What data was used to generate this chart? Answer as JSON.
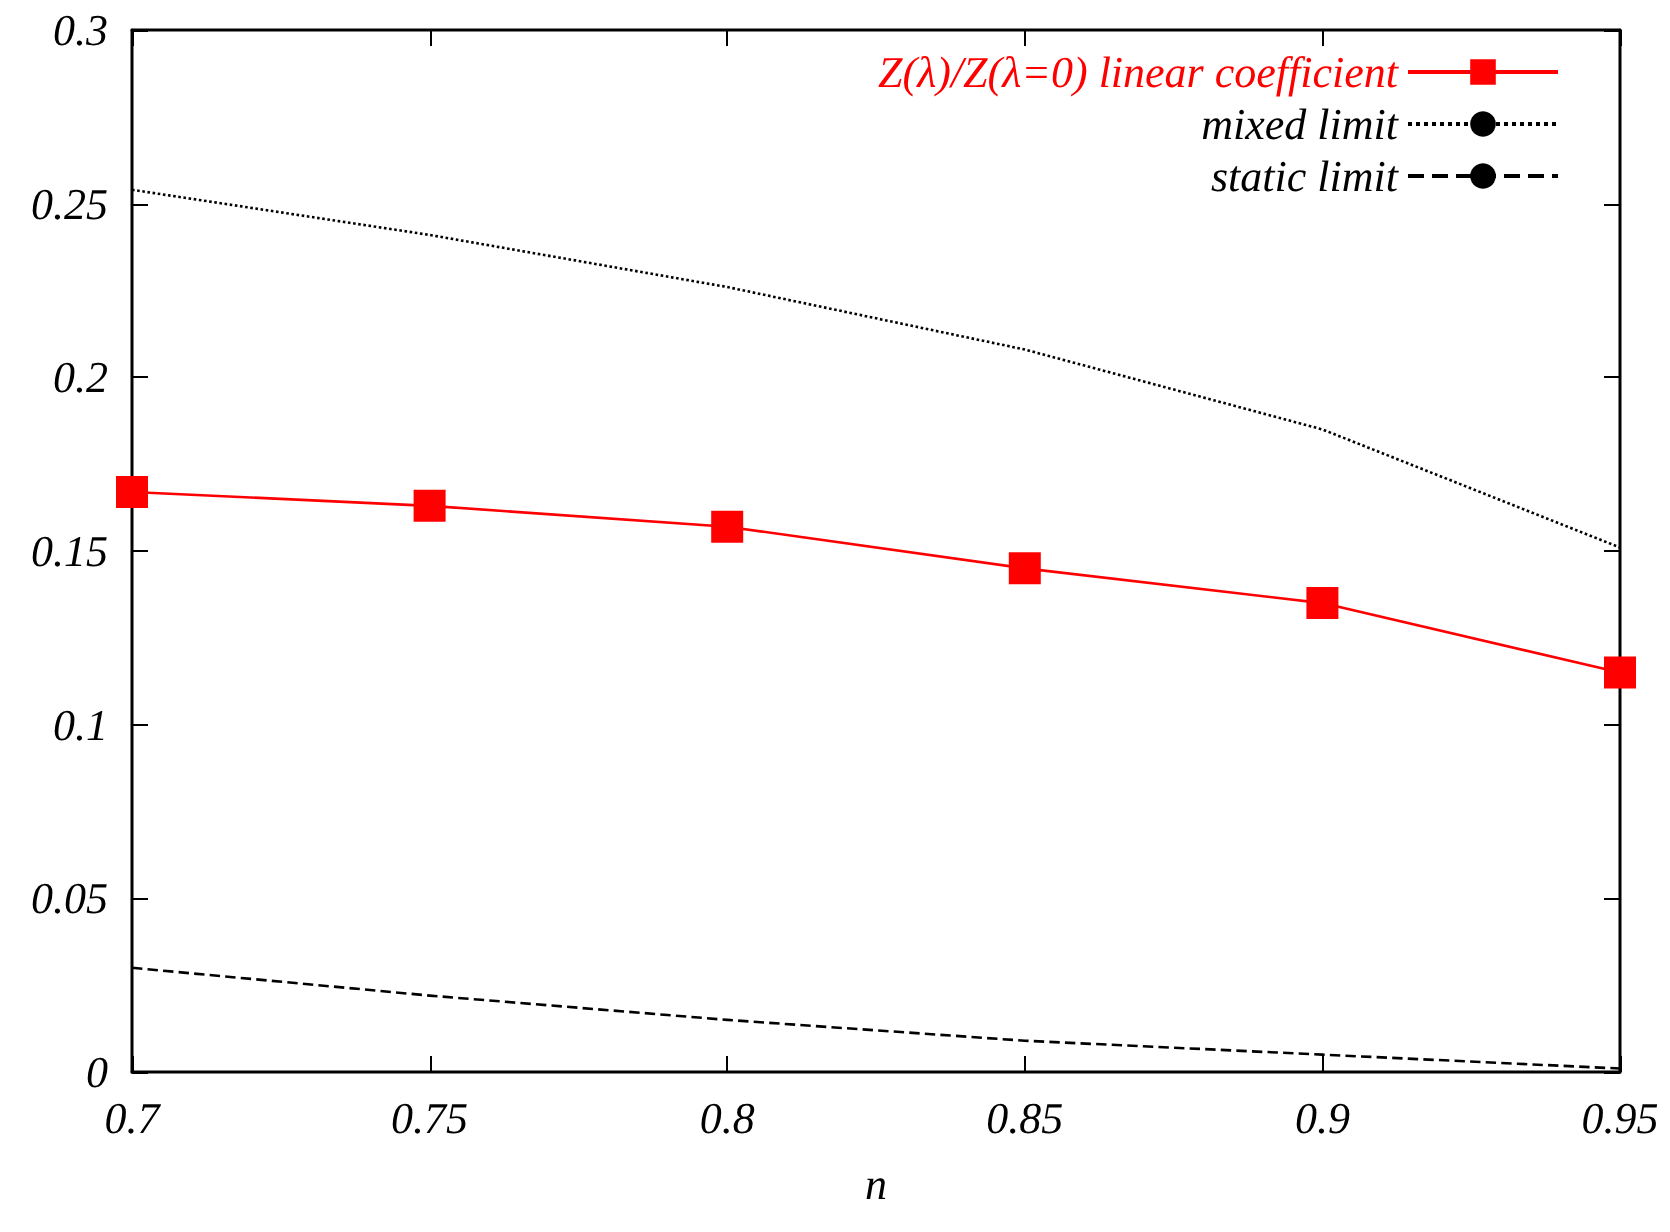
{
  "chart_data": {
    "type": "line",
    "xlabel": "n",
    "x": [
      0.7,
      0.75,
      0.8,
      0.85,
      0.9,
      0.95
    ],
    "series": [
      {
        "name": "Z(λ)/Z(λ=0) linear coefficient",
        "color": "#ff0000",
        "marker": "square",
        "line_style": "solid",
        "values": [
          0.167,
          0.163,
          0.157,
          0.145,
          0.135,
          0.115
        ]
      },
      {
        "name": "mixed limit",
        "color": "#000000",
        "marker": "none",
        "line_style": "dotted",
        "values": [
          0.254,
          0.241,
          0.226,
          0.208,
          0.185,
          0.151
        ]
      },
      {
        "name": "static limit",
        "color": "#000000",
        "marker": "none",
        "line_style": "dashed",
        "values": [
          0.03,
          0.022,
          0.015,
          0.009,
          0.005,
          0.001
        ]
      }
    ],
    "xlim": [
      0.7,
      0.95
    ],
    "xticks": [
      0.7,
      0.75,
      0.8,
      0.85,
      0.9,
      0.95
    ],
    "ylim": [
      0,
      0.3
    ],
    "yticks": [
      0,
      0.05,
      0.1,
      0.15,
      0.2,
      0.25,
      0.3
    ],
    "grid": false,
    "legend": "top right"
  }
}
